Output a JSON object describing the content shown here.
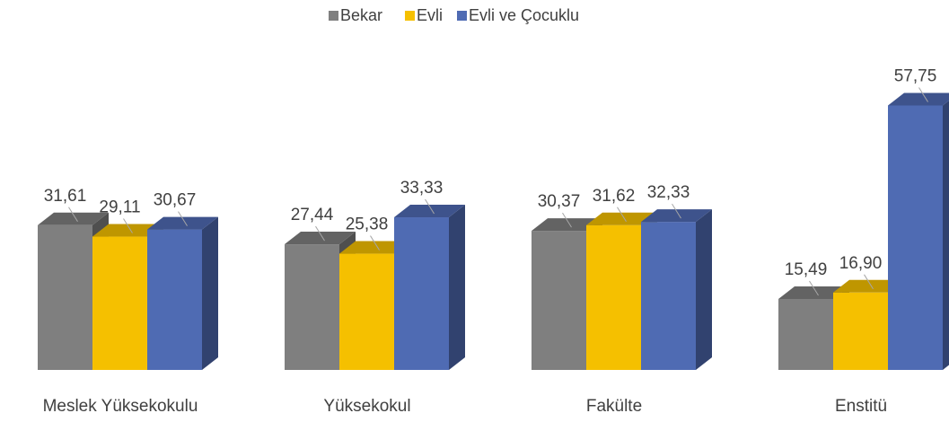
{
  "chart_data": {
    "type": "bar3d",
    "categories": [
      "Meslek Yüksekokulu",
      "Yüksekokul",
      "Fakülte",
      "Enstitü"
    ],
    "series": [
      {
        "name": "Bekar",
        "color": "#7f7f7f",
        "values": [
          31.61,
          27.44,
          30.37,
          15.49
        ],
        "value_labels": [
          "31,61",
          "27,44",
          "30,37",
          "15,49"
        ]
      },
      {
        "name": "Evli",
        "color": "#f5c000",
        "values": [
          29.11,
          25.38,
          31.62,
          16.9
        ],
        "value_labels": [
          "29,11",
          "25,38",
          "31,62",
          "16,90"
        ]
      },
      {
        "name": "Evli ve Çocuklu",
        "color": "#4f6bb3",
        "values": [
          30.67,
          33.33,
          32.33,
          57.75
        ],
        "value_labels": [
          "30,67",
          "33,33",
          "32,33",
          "57,75"
        ]
      }
    ],
    "legend": "top"
  }
}
